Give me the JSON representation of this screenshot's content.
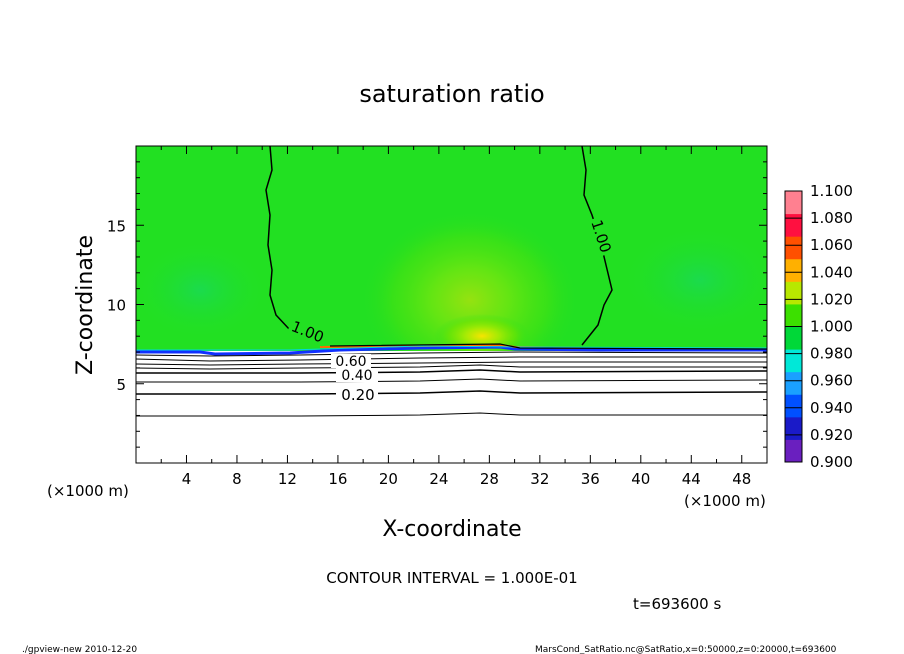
{
  "chart_data": {
    "type": "heatmap",
    "title": "saturation ratio",
    "xlabel": "X-coordinate",
    "ylabel": "Z-coordinate",
    "x_unit_left": "(×1000 m)",
    "x_unit_right": "(×1000 m)",
    "xlim": [
      0,
      50
    ],
    "ylim": [
      0,
      20
    ],
    "x_ticks": [
      "4",
      "8",
      "12",
      "16",
      "20",
      "24",
      "28",
      "32",
      "36",
      "40",
      "44",
      "48"
    ],
    "y_ticks": [
      "5",
      "10",
      "15"
    ],
    "contour_labels": [
      "1.00",
      "1.00",
      "0.60",
      "0.40",
      "0.20"
    ],
    "contour_interval_text": "CONTOUR INTERVAL = 1.000E-01",
    "time_text": "t=693600 s",
    "colorbar": {
      "levels": [
        "0.900",
        "0.920",
        "0.940",
        "0.960",
        "0.980",
        "1.000",
        "1.020",
        "1.040",
        "1.060",
        "1.080",
        "1.100"
      ],
      "colors": [
        "#6a1fbf",
        "#1a1ac8",
        "#0050ff",
        "#1aa0ff",
        "#00e8d8",
        "#00d838",
        "#3ce000",
        "#b8e800",
        "#ffb000",
        "#ff5000",
        "#ff1040",
        "#ff8090"
      ]
    },
    "field_color": "#22e022",
    "dry_color": "#ffffff"
  },
  "footer": {
    "left": "./gpview-new   2010-12-20",
    "right": "MarsCond_SatRatio.nc@SatRatio,x=0:50000,z=0:20000,t=693600"
  }
}
